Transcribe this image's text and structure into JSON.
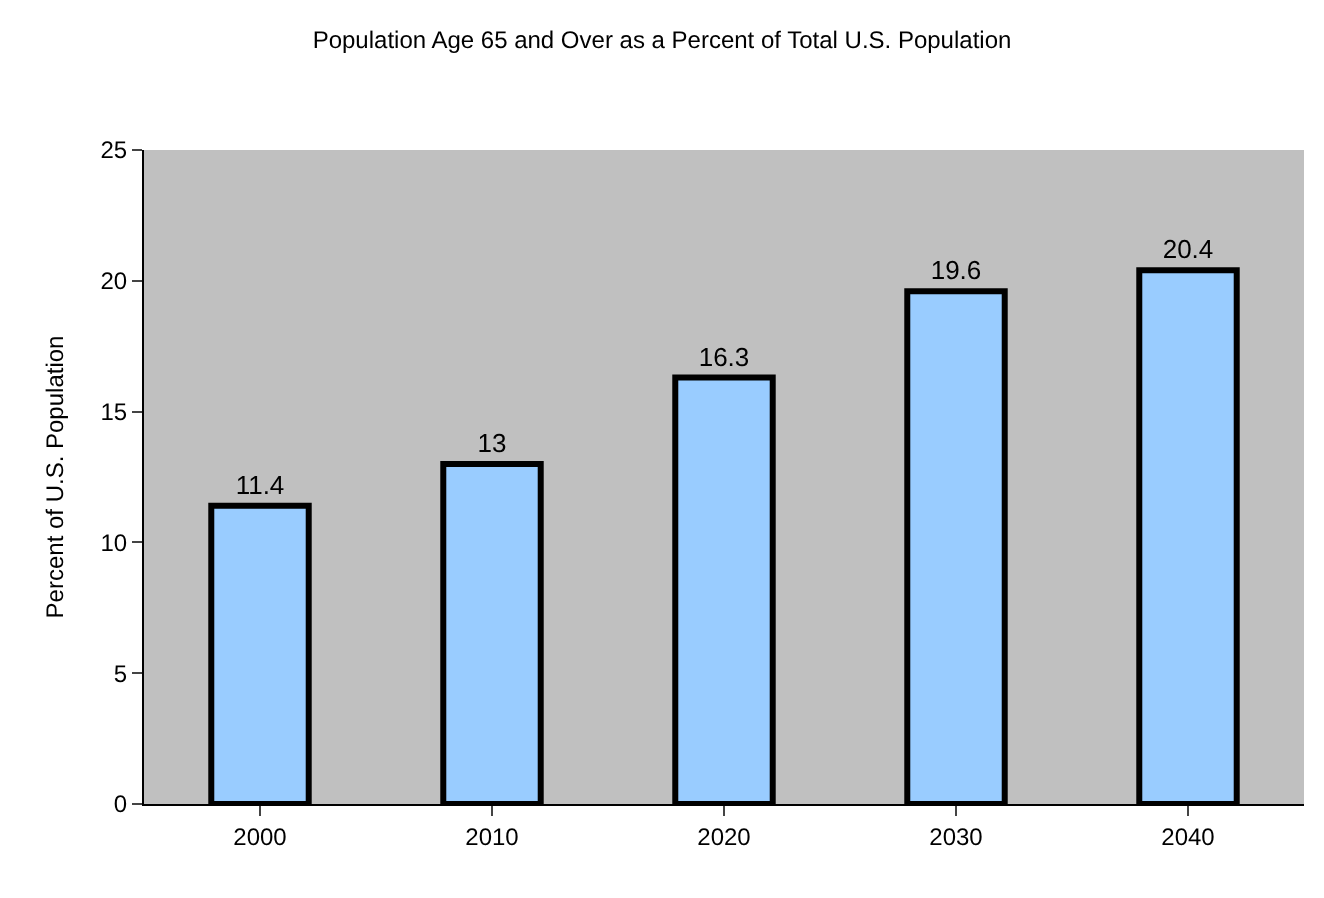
{
  "chart_data": {
    "type": "bar",
    "title": "Population Age 65 and Over as a Percent of Total U.S. Population",
    "ylabel": "Percent of U.S. Population",
    "categories": [
      "2000",
      "2010",
      "2020",
      "2030",
      "2040"
    ],
    "values": [
      11.4,
      13,
      16.3,
      19.6,
      20.4
    ],
    "color": "#99ccff",
    "ylim": [
      0,
      25
    ],
    "yticks": [
      0,
      5,
      10,
      15,
      20,
      25
    ],
    "grid": false,
    "legend": false,
    "data_labels": true
  }
}
